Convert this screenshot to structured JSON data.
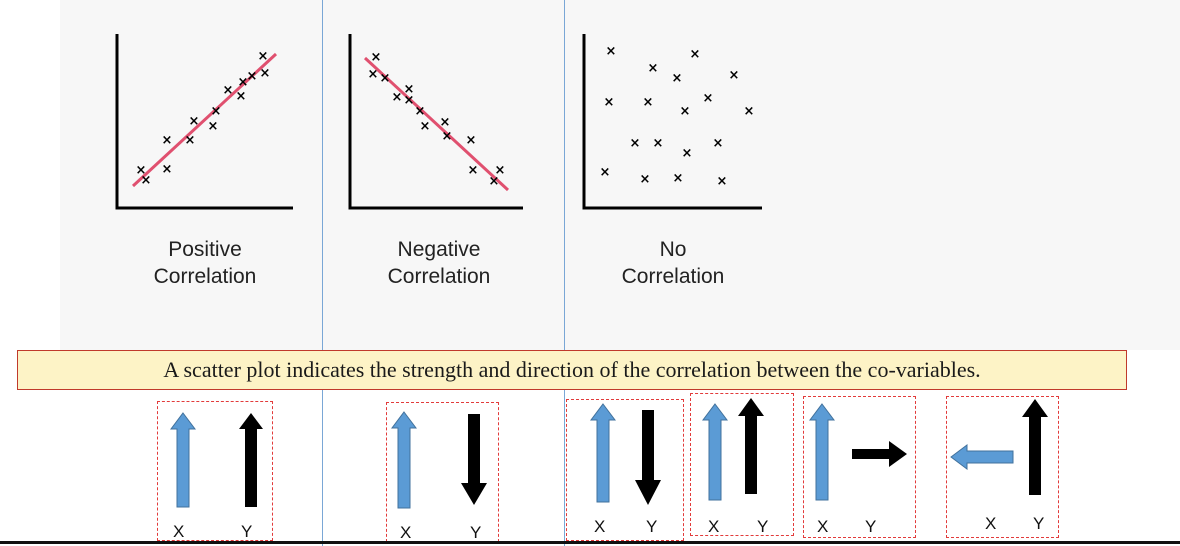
{
  "plots": [
    {
      "id": "positive",
      "label_line1": "Positive",
      "label_line2": "Correlation"
    },
    {
      "id": "negative",
      "label_line1": "Negative",
      "label_line2": "Correlation"
    },
    {
      "id": "none",
      "label_line1": "No",
      "label_line2": "Correlation"
    }
  ],
  "banner": "A scatter plot indicates the strength and direction of the correlation between the co-variables.",
  "arrow_pairs": [
    {
      "x_label": "X",
      "y_label": "Y",
      "x_direction": "up",
      "y_direction": "up"
    },
    {
      "x_label": "X",
      "y_label": "Y",
      "x_direction": "up",
      "y_direction": "down"
    },
    {
      "x_label": "X",
      "y_label": "Y",
      "x_direction": "up",
      "y_direction": "down"
    },
    {
      "x_label": "X",
      "y_label": "Y",
      "x_direction": "up",
      "y_direction": "up"
    },
    {
      "x_label": "X",
      "y_label": "Y",
      "x_direction": "up",
      "y_direction": "right"
    },
    {
      "x_label": "X",
      "y_label": "Y",
      "x_direction": "left",
      "y_direction": "up"
    }
  ],
  "colors": {
    "trend_line": "#e0506f",
    "x_arrow": "#5b9bd5",
    "y_arrow": "#000000",
    "box_border": "#e23b3b",
    "banner_bg": "#fdf3c6"
  }
}
